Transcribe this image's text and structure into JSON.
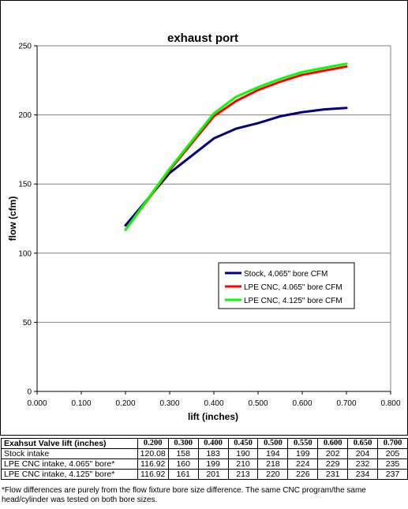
{
  "chart_data": {
    "type": "line",
    "title": "exhaust port",
    "xlabel": "lift (inches)",
    "ylabel": "flow (cfm)",
    "xlim": [
      0,
      0.8
    ],
    "ylim": [
      0,
      250
    ],
    "xticks": [
      "0.000",
      "0.100",
      "0.200",
      "0.300",
      "0.400",
      "0.500",
      "0.600",
      "0.700",
      "0.800"
    ],
    "yticks": [
      "0",
      "50",
      "100",
      "150",
      "200",
      "250"
    ],
    "grid": "horizontal",
    "legend_position": "right-middle",
    "x": [
      0.2,
      0.3,
      0.4,
      0.45,
      0.5,
      0.55,
      0.6,
      0.65,
      0.7
    ],
    "series": [
      {
        "name": "Stock, 4.065\" bore  CFM",
        "color": "#000080",
        "values": [
          120.08,
          158,
          183,
          190,
          194,
          199,
          202,
          204,
          205
        ]
      },
      {
        "name": "LPE CNC, 4.065\" bore  CFM",
        "color": "#ff0000",
        "values": [
          116.92,
          160,
          199,
          210,
          218,
          224,
          229,
          232,
          235
        ]
      },
      {
        "name": "LPE CNC, 4.125\" bore CFM",
        "color": "#00ff00",
        "values": [
          116.92,
          161,
          201,
          213,
          220,
          226,
          231,
          234,
          237
        ]
      }
    ]
  },
  "table": {
    "header_label": "Exahsut Valve lift (inches)",
    "columns": [
      "0.200",
      "0.300",
      "0.400",
      "0.450",
      "0.500",
      "0.550",
      "0.600",
      "0.650",
      "0.700"
    ],
    "rows": [
      {
        "label": "Stock intake",
        "values": [
          "120.08",
          "158",
          "183",
          "190",
          "194",
          "199",
          "202",
          "204",
          "205"
        ]
      },
      {
        "label": "LPE CNC intake, 4.065\" bore*",
        "values": [
          "116.92",
          "160",
          "199",
          "210",
          "218",
          "224",
          "229",
          "232",
          "235"
        ]
      },
      {
        "label": "LPE CNC intake, 4.125\" bore*",
        "values": [
          "116.92",
          "161",
          "201",
          "213",
          "220",
          "226",
          "231",
          "234",
          "237"
        ]
      }
    ]
  },
  "footnote": "*Flow differences are purely from the flow fixture bore size difference. The same CNC program/the same head/cylinder was tested on both bore sizes."
}
